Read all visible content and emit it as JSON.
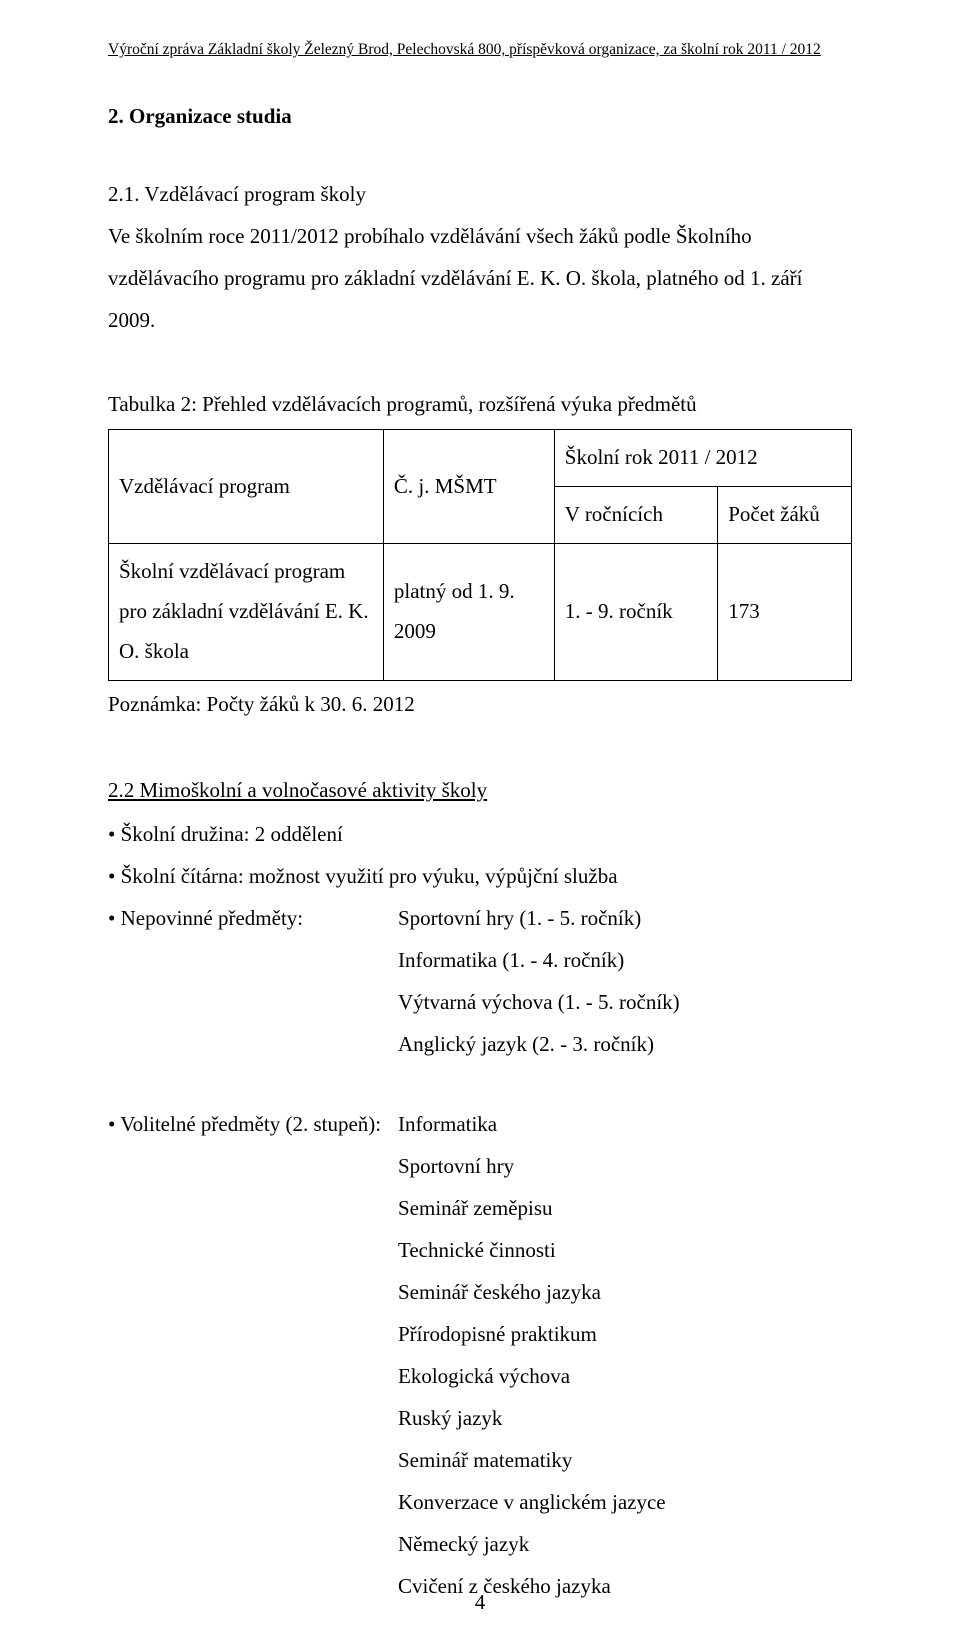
{
  "colors": {
    "text": "#000000",
    "background": "#ffffff",
    "border": "#000000"
  },
  "font": {
    "family": "Times New Roman",
    "body_size_pt": 16,
    "header_size_pt": 12
  },
  "running_header": "Výroční zpráva Základní školy Železný Brod, Pelechovská 800, příspěvková organizace, za školní rok 2011 / 2012",
  "section": {
    "heading": "2. Organizace studia",
    "sub21_title": "2.1. Vzdělávací program školy",
    "sub21_body": "Ve  školním roce 2011/2012 probíhalo vzdělávání všech žáků podle Školního vzdělávacího programu pro základní vzdělávání E. K. O. škola, platného od 1. září 2009."
  },
  "table2": {
    "caption": "Tabulka 2: Přehled vzdělávacích programů, rozšířená výuka předmětů",
    "header_program": "Vzdělávací program",
    "header_cj": "Č. j. MŠMT",
    "header_year": "Školní rok 2011 / 2012",
    "header_grades": "V ročnících",
    "header_count": "Počet žáků",
    "row1_program": "Školní vzdělávací program pro základní vzdělávání E. K. O. škola",
    "row1_valid": "platný od 1. 9. 2009",
    "row1_grades": "1. - 9. ročník",
    "row1_count": "173",
    "note": "Poznámka: Počty žáků k 30. 6. 2012"
  },
  "sub22": {
    "title": "2.2 Mimoškolní a volnočasové aktivity školy",
    "bullet1": "• Školní družina: 2 oddělení",
    "bullet2": "• Školní čítárna: možnost využití pro výuku, výpůjční služba",
    "bullet3_label": "• Nepovinné předměty:",
    "bullet3_items": [
      "Sportovní hry (1. - 5. ročník)",
      "Informatika (1. - 4. ročník)",
      "Výtvarná výchova (1. - 5. ročník)",
      "Anglický jazyk (2. - 3. ročník)"
    ],
    "bullet4_label": "• Volitelné předměty (2. stupeň):",
    "bullet4_items": [
      "Informatika",
      "Sportovní hry",
      "Seminář zeměpisu",
      "Technické činnosti",
      "Seminář českého jazyka",
      "Přírodopisné praktikum",
      "Ekologická výchova",
      "Ruský jazyk",
      "Seminář matematiky",
      "Konverzace v anglickém jazyce",
      "Německý jazyk",
      "Cvičení z českého jazyka"
    ]
  },
  "page_number": "4"
}
